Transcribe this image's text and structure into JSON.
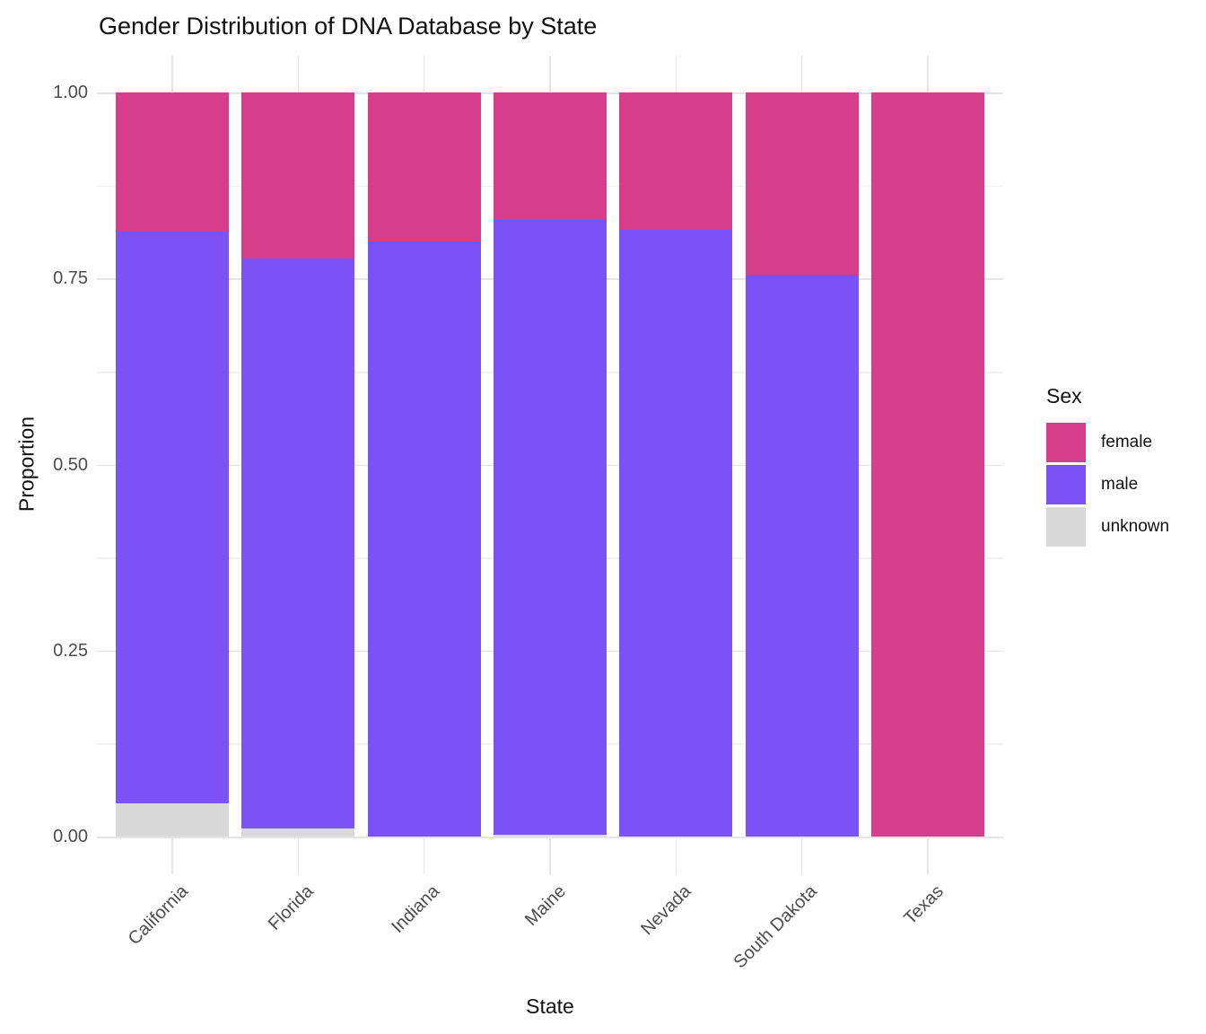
{
  "chart_data": {
    "type": "bar",
    "stacked": true,
    "normalized": true,
    "title": "Gender Distribution of DNA Database by State",
    "xlabel": "State",
    "ylabel": "Proportion",
    "categories": [
      "California",
      "Florida",
      "Indiana",
      "Maine",
      "Nevada",
      "South Dakota",
      "Texas"
    ],
    "series": [
      {
        "name": "female",
        "color": "#D63E8C",
        "values": [
          0.187,
          0.223,
          0.2,
          0.171,
          0.184,
          0.245,
          1.0
        ]
      },
      {
        "name": "male",
        "color": "#7B52F5",
        "values": [
          0.768,
          0.766,
          0.8,
          0.826,
          0.816,
          0.755,
          0.0
        ]
      },
      {
        "name": "unknown",
        "color": "#D9D9D9",
        "values": [
          0.045,
          0.011,
          0.0,
          0.003,
          0.0,
          0.0,
          0.0
        ]
      }
    ],
    "stack_order_bottom_to_top": [
      "unknown",
      "male",
      "female"
    ],
    "ylim": [
      0,
      1
    ],
    "yticks": [
      {
        "label": "0.00",
        "value": 0.0
      },
      {
        "label": "0.25",
        "value": 0.25
      },
      {
        "label": "0.50",
        "value": 0.5
      },
      {
        "label": "0.75",
        "value": 0.75
      },
      {
        "label": "1.00",
        "value": 1.0
      }
    ],
    "minor_gridlines": [
      0.125,
      0.375,
      0.625,
      0.875
    ],
    "grid": true,
    "legend": {
      "title": "Sex",
      "position": "right",
      "entries": [
        "female",
        "male",
        "unknown"
      ]
    },
    "colors": {
      "female": "#D63E8C",
      "male": "#7B52F5",
      "unknown": "#D9D9D9",
      "grid_major": "#E5E5E5",
      "grid_minor": "#F2F2F2",
      "axis_text": "#4D4D4D",
      "title_text": "#111111",
      "background": "#FFFFFF"
    }
  }
}
